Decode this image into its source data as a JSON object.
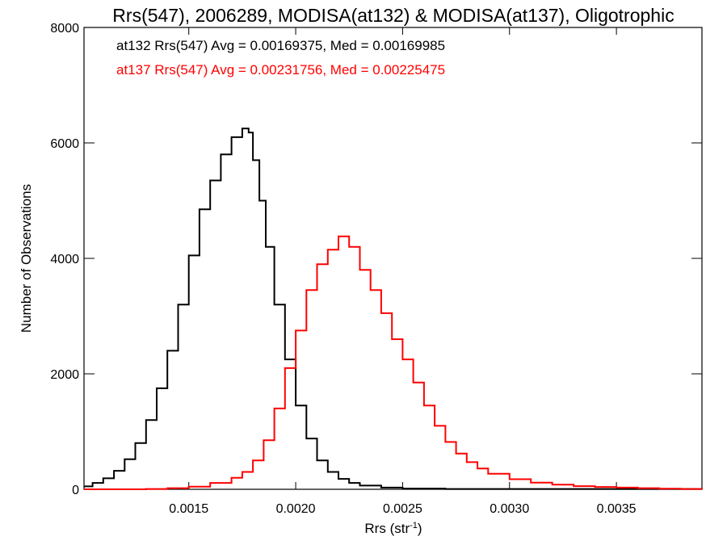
{
  "chart_data": {
    "type": "line",
    "title": "Rrs(547), 2006289, MODISA(at132) & MODISA(at137), Oligotrophic",
    "xlabel_main": "Rrs (str",
    "xlabel_sup": "-1",
    "xlabel_close": ")",
    "ylabel": "Number of Observations",
    "xlim": [
      0.00101,
      0.0039
    ],
    "ylim": [
      0,
      8000
    ],
    "xticks": [
      0.0015,
      0.002,
      0.0025,
      0.003,
      0.0035
    ],
    "xtick_labels": [
      "0.0015",
      "0.0020",
      "0.0025",
      "0.0030",
      "0.0035"
    ],
    "yticks": [
      0,
      2000,
      4000,
      6000,
      8000
    ],
    "ytick_labels": [
      "0",
      "2000",
      "4000",
      "6000",
      "8000"
    ],
    "grid": false,
    "annotations": [
      {
        "text": "at132 Rrs(547) Avg = 0.00169375, Med = 0.00169985",
        "color": "#000000"
      },
      {
        "text": "at137 Rrs(547) Avg = 0.00231756, Med = 0.00225475",
        "color": "#ff0000"
      }
    ],
    "series": [
      {
        "color": "#000000",
        "points": [
          [
            0.00101,
            50
          ],
          [
            0.00105,
            110
          ],
          [
            0.0011,
            190
          ],
          [
            0.00115,
            320
          ],
          [
            0.0012,
            520
          ],
          [
            0.00125,
            800
          ],
          [
            0.0013,
            1200
          ],
          [
            0.00135,
            1750
          ],
          [
            0.0014,
            2400
          ],
          [
            0.00145,
            3200
          ],
          [
            0.0015,
            4050
          ],
          [
            0.00155,
            4850
          ],
          [
            0.0016,
            5350
          ],
          [
            0.00165,
            5800
          ],
          [
            0.0017,
            6100
          ],
          [
            0.00175,
            6250
          ],
          [
            0.00178,
            6180
          ],
          [
            0.0018,
            5700
          ],
          [
            0.00183,
            5000
          ],
          [
            0.00186,
            4200
          ],
          [
            0.0019,
            3200
          ],
          [
            0.00195,
            2250
          ],
          [
            0.002,
            1450
          ],
          [
            0.00205,
            880
          ],
          [
            0.0021,
            500
          ],
          [
            0.00215,
            300
          ],
          [
            0.0022,
            180
          ],
          [
            0.00225,
            110
          ],
          [
            0.0023,
            65
          ],
          [
            0.0024,
            30
          ],
          [
            0.0025,
            12
          ],
          [
            0.0027,
            5
          ],
          [
            0.0039,
            0
          ]
        ]
      },
      {
        "color": "#ff0000",
        "points": [
          [
            0.00101,
            0
          ],
          [
            0.0013,
            5
          ],
          [
            0.0014,
            20
          ],
          [
            0.0015,
            45
          ],
          [
            0.0016,
            110
          ],
          [
            0.0017,
            200
          ],
          [
            0.00175,
            300
          ],
          [
            0.0018,
            500
          ],
          [
            0.00185,
            850
          ],
          [
            0.0019,
            1400
          ],
          [
            0.00195,
            2100
          ],
          [
            0.002,
            2750
          ],
          [
            0.00205,
            3450
          ],
          [
            0.0021,
            3900
          ],
          [
            0.00215,
            4150
          ],
          [
            0.0022,
            4380
          ],
          [
            0.00225,
            4200
          ],
          [
            0.0023,
            3800
          ],
          [
            0.00235,
            3450
          ],
          [
            0.0024,
            3050
          ],
          [
            0.00245,
            2600
          ],
          [
            0.0025,
            2250
          ],
          [
            0.00255,
            1850
          ],
          [
            0.0026,
            1450
          ],
          [
            0.00265,
            1100
          ],
          [
            0.0027,
            820
          ],
          [
            0.00275,
            620
          ],
          [
            0.0028,
            470
          ],
          [
            0.00285,
            360
          ],
          [
            0.0029,
            270
          ],
          [
            0.003,
            175
          ],
          [
            0.0031,
            115
          ],
          [
            0.0032,
            80
          ],
          [
            0.0033,
            55
          ],
          [
            0.0034,
            40
          ],
          [
            0.0035,
            30
          ],
          [
            0.0036,
            20
          ],
          [
            0.0037,
            10
          ],
          [
            0.0038,
            5
          ],
          [
            0.0039,
            0
          ]
        ]
      }
    ]
  }
}
